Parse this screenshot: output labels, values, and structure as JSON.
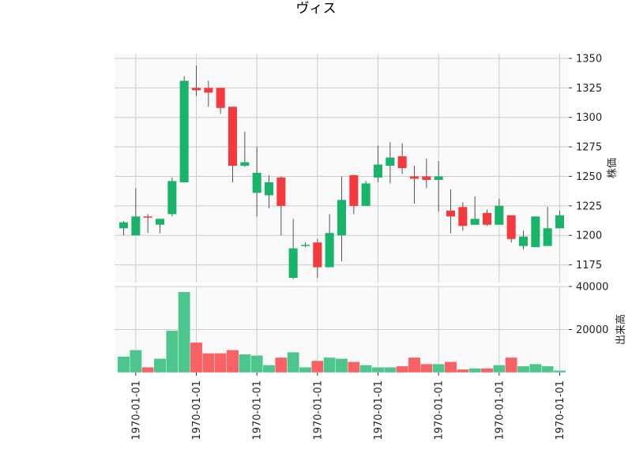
{
  "chart_data": {
    "type": "candlestick",
    "title": "ヴィス",
    "price_axis": {
      "label": "株価",
      "ylim": [
        1160,
        1354
      ],
      "ticks": [
        1175,
        1200,
        1225,
        1250,
        1275,
        1300,
        1325,
        1350
      ]
    },
    "volume_axis": {
      "label": "出来高",
      "ylim": [
        0,
        40000
      ],
      "ticks": [
        20000,
        40000
      ]
    },
    "x_tick_labels": [
      "1970-01-01",
      "1970-01-01",
      "1970-01-01",
      "1970-01-01",
      "1970-01-01",
      "1970-01-01",
      "1970-01-01",
      "1970-01-01"
    ],
    "x_tick_index": [
      1,
      6,
      11,
      16,
      21,
      26,
      31,
      36
    ],
    "grid": true,
    "colors": {
      "up": "#17b46a",
      "down": "#f5393d",
      "up_volume": "#4cc68c",
      "down_volume": "#f86265",
      "wick": "#555555",
      "plot_bg": "#f9f9f9",
      "grid": "#cccccc"
    },
    "candles": [
      {
        "open": 1206,
        "high": 1212,
        "low": 1200,
        "close": 1211,
        "volume": 7500
      },
      {
        "open": 1200,
        "high": 1240,
        "low": 1200,
        "close": 1216,
        "volume": 10500
      },
      {
        "open": 1216,
        "high": 1218,
        "low": 1202,
        "close": 1215,
        "volume": 2500
      },
      {
        "open": 1209,
        "high": 1214,
        "low": 1202,
        "close": 1214,
        "volume": 6500
      },
      {
        "open": 1218,
        "high": 1249,
        "low": 1216,
        "close": 1246,
        "volume": 19500
      },
      {
        "open": 1245,
        "high": 1335,
        "low": 1245,
        "close": 1331,
        "volume": 37500
      },
      {
        "open": 1325,
        "high": 1344,
        "low": 1318,
        "close": 1323,
        "volume": 14000
      },
      {
        "open": 1325,
        "high": 1331,
        "low": 1309,
        "close": 1321,
        "volume": 9000
      },
      {
        "open": 1325,
        "high": 1325,
        "low": 1303,
        "close": 1308,
        "volume": 9000
      },
      {
        "open": 1309,
        "high": 1309,
        "low": 1245,
        "close": 1259,
        "volume": 10500
      },
      {
        "open": 1259,
        "high": 1288,
        "low": 1258,
        "close": 1262,
        "volume": 8500
      },
      {
        "open": 1236,
        "high": 1275,
        "low": 1216,
        "close": 1253,
        "volume": 8000
      },
      {
        "open": 1234,
        "high": 1251,
        "low": 1223,
        "close": 1245,
        "volume": 3500
      },
      {
        "open": 1249,
        "high": 1250,
        "low": 1200,
        "close": 1225,
        "volume": 7000
      },
      {
        "open": 1164,
        "high": 1214,
        "low": 1163,
        "close": 1189,
        "volume": 9500
      },
      {
        "open": 1191,
        "high": 1194,
        "low": 1190,
        "close": 1192,
        "volume": 2500
      },
      {
        "open": 1194,
        "high": 1197,
        "low": 1164,
        "close": 1173,
        "volume": 5500
      },
      {
        "open": 1173,
        "high": 1218,
        "low": 1173,
        "close": 1202,
        "volume": 7000
      },
      {
        "open": 1200,
        "high": 1250,
        "low": 1178,
        "close": 1230,
        "volume": 6500
      },
      {
        "open": 1251,
        "high": 1251,
        "low": 1218,
        "close": 1225,
        "volume": 5000
      },
      {
        "open": 1225,
        "high": 1246,
        "low": 1225,
        "close": 1244,
        "volume": 3500
      },
      {
        "open": 1249,
        "high": 1276,
        "low": 1245,
        "close": 1260,
        "volume": 2500
      },
      {
        "open": 1259,
        "high": 1279,
        "low": 1244,
        "close": 1266,
        "volume": 2500
      },
      {
        "open": 1267,
        "high": 1278,
        "low": 1252,
        "close": 1257,
        "volume": 3000
      },
      {
        "open": 1250,
        "high": 1259,
        "low": 1227,
        "close": 1248,
        "volume": 7000
      },
      {
        "open": 1250,
        "high": 1265,
        "low": 1240,
        "close": 1247,
        "volume": 4000
      },
      {
        "open": 1247,
        "high": 1263,
        "low": 1220,
        "close": 1250,
        "volume": 4000
      },
      {
        "open": 1221,
        "high": 1239,
        "low": 1202,
        "close": 1216,
        "volume": 5000
      },
      {
        "open": 1224,
        "high": 1228,
        "low": 1204,
        "close": 1208,
        "volume": 1500
      },
      {
        "open": 1209,
        "high": 1233,
        "low": 1209,
        "close": 1214,
        "volume": 2000
      },
      {
        "open": 1219,
        "high": 1222,
        "low": 1208,
        "close": 1209,
        "volume": 2000
      },
      {
        "open": 1209,
        "high": 1231,
        "low": 1209,
        "close": 1225,
        "volume": 3500
      },
      {
        "open": 1217,
        "high": 1217,
        "low": 1194,
        "close": 1197,
        "volume": 7000
      },
      {
        "open": 1191,
        "high": 1204,
        "low": 1188,
        "close": 1199,
        "volume": 3000
      },
      {
        "open": 1190,
        "high": 1216,
        "low": 1190,
        "close": 1216,
        "volume": 4000
      },
      {
        "open": 1191,
        "high": 1224,
        "low": 1191,
        "close": 1206,
        "volume": 3000
      },
      {
        "open": 1206,
        "high": 1221,
        "low": 1206,
        "close": 1217,
        "volume": 1000
      }
    ]
  }
}
